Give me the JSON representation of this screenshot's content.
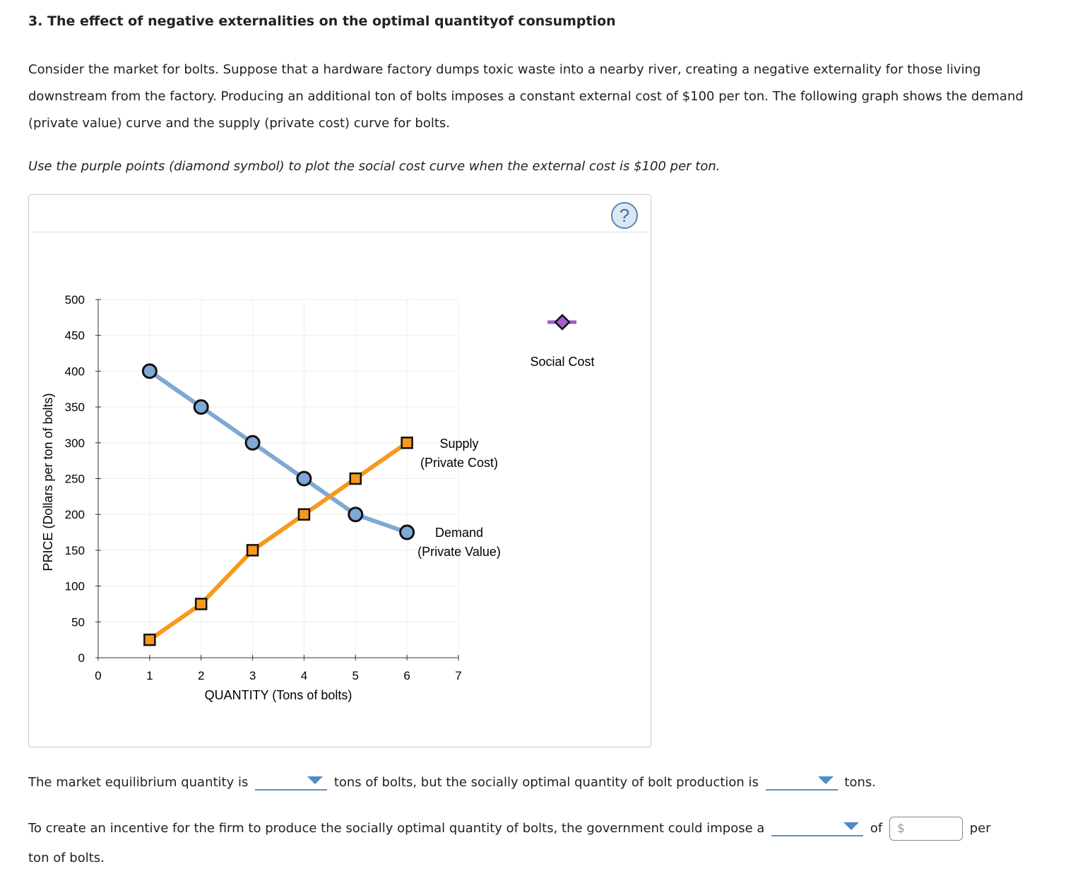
{
  "title": "3. The effect of negative externalities on the optimal quantityof consumption",
  "intro": "Consider the market for bolts. Suppose that a hardware factory dumps toxic waste into a nearby river, creating a negative externality for those living downstream from the factory. Producing an additional ton of bolts imposes a constant external cost of $100 per ton. The following graph shows the demand (private value) curve and the supply (private cost) curve for bolts.",
  "instruction": "Use the purple points (diamond symbol) to plot the social cost curve when the external cost is $100 per ton.",
  "help_icon": "question-mark-icon",
  "chart_data": {
    "type": "line",
    "xlabel": "QUANTITY (Tons of bolts)",
    "ylabel": "PRICE (Dollars per ton of bolts)",
    "xlim": [
      0,
      7
    ],
    "ylim": [
      0,
      500
    ],
    "xticks": [
      0,
      1,
      2,
      3,
      4,
      5,
      6,
      7
    ],
    "yticks": [
      0,
      50,
      100,
      150,
      200,
      250,
      300,
      350,
      400,
      450,
      500
    ],
    "grid": true,
    "series": [
      {
        "name": "Demand (Private Value)",
        "label_lines": [
          "Demand",
          "(Private Value)"
        ],
        "marker": "circle",
        "color": "#7fa8d4",
        "x": [
          1,
          2,
          3,
          4,
          5,
          6
        ],
        "y": [
          400,
          350,
          300,
          250,
          200,
          175
        ]
      },
      {
        "name": "Supply (Private Cost)",
        "label_lines": [
          "Supply",
          "(Private Cost)"
        ],
        "marker": "square",
        "color": "#f7991c",
        "x": [
          1,
          2,
          3,
          4,
          5,
          6
        ],
        "y": [
          25,
          75,
          150,
          200,
          250,
          300
        ]
      }
    ],
    "palette_tool": {
      "name": "Social Cost",
      "marker": "diamond",
      "color": "#a05cd0"
    }
  },
  "q1": {
    "before": "The market equilibrium quantity is",
    "middle": "tons of bolts, but the socially optimal quantity of bolt production is",
    "after": "tons."
  },
  "q2": {
    "before": "To create an incentive for the firm to produce the socially optimal quantity of bolts, the government could impose a",
    "of": "of",
    "currency": "$",
    "after": "per",
    "wrap": "ton of bolts."
  }
}
